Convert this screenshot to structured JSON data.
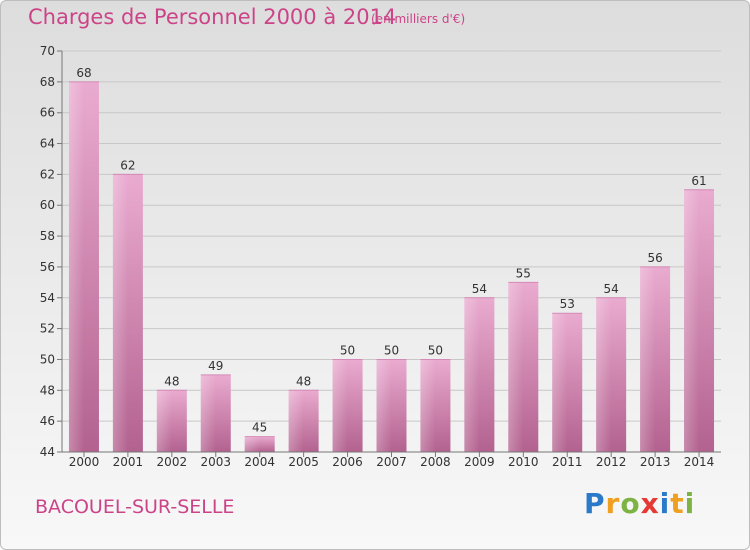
{
  "title": "Charges de Personnel 2000 à 2014",
  "subtitle": "(en milliers d'€)",
  "commune": "BACOUEL-SUR-SELLE",
  "logo": {
    "p": "P",
    "r": "r",
    "o": "o",
    "x": "x",
    "i1": "i",
    "t": "t",
    "i2": "i"
  },
  "colors": {
    "bar_top": "#e8a8cc",
    "bar_bottom": "#b86a96",
    "text_accent": "#cc4488"
  },
  "chart_data": {
    "type": "bar",
    "title": "Charges de Personnel 2000 à 2014",
    "subtitle": "(en milliers d'€)",
    "categories": [
      "2000",
      "2001",
      "2002",
      "2003",
      "2004",
      "2005",
      "2006",
      "2007",
      "2008",
      "2009",
      "2010",
      "2011",
      "2012",
      "2013",
      "2014"
    ],
    "values": [
      68,
      62,
      48,
      49,
      45,
      48,
      50,
      50,
      50,
      54,
      55,
      53,
      54,
      56,
      61
    ],
    "ylim": [
      44,
      70
    ],
    "yticks": [
      44,
      46,
      48,
      50,
      52,
      54,
      56,
      58,
      60,
      62,
      64,
      66,
      68,
      70
    ],
    "grid": true,
    "legend": "none"
  }
}
